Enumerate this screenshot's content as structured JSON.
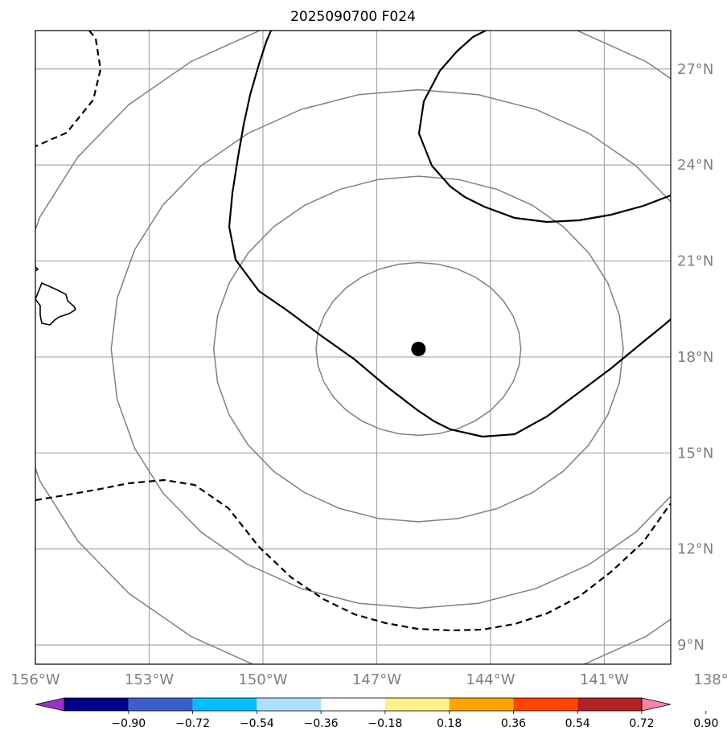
{
  "title": "2025090700 F024",
  "map": {
    "lon_range": [
      -156,
      -139.25
    ],
    "lat_range": [
      8.4,
      28.2
    ],
    "lon_ticks": [
      {
        "value": -156,
        "label": "156°W"
      },
      {
        "value": -153,
        "label": "153°W"
      },
      {
        "value": -150,
        "label": "150°W"
      },
      {
        "value": -147,
        "label": "147°W"
      },
      {
        "value": -144,
        "label": "144°W"
      },
      {
        "value": -141,
        "label": "141°W"
      },
      {
        "value": -138,
        "label": "138°W"
      }
    ],
    "lat_ticks": [
      {
        "value": 27,
        "label": "27°N"
      },
      {
        "value": 24,
        "label": "24°N"
      },
      {
        "value": 21,
        "label": "21°N"
      },
      {
        "value": 18,
        "label": "18°N"
      },
      {
        "value": 15,
        "label": "15°N"
      },
      {
        "value": 12,
        "label": "12°N"
      },
      {
        "value": 9,
        "label": "9°N"
      }
    ],
    "grid_color": "#a9a9a9",
    "range_ring_color": "#808080",
    "center_marker": {
      "lon": -145.9,
      "lat": 18.25
    },
    "range_rings_deg": [
      2.7,
      5.4,
      8.1,
      10.8
    ]
  },
  "colorbar": {
    "tick_labels": [
      "−0.90",
      "−0.72",
      "−0.54",
      "−0.36",
      "−0.18",
      "0.18",
      "0.36",
      "0.54",
      "0.72",
      "0.90"
    ],
    "colors": [
      "#9932cc",
      "#00008b",
      "#3a5fcd",
      "#00bfff",
      "#b0e0ff",
      "#ffffff",
      "#fff08c",
      "#ffa500",
      "#ff4500",
      "#b22222",
      "#ff82ab"
    ]
  }
}
